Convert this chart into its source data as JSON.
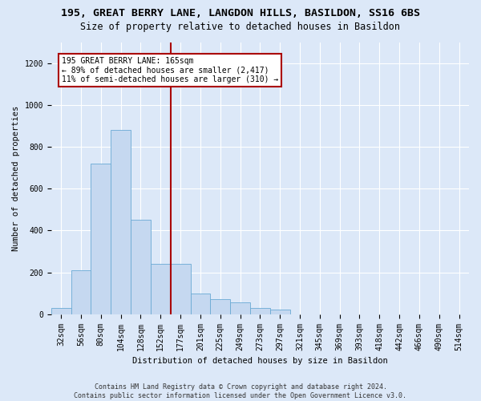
{
  "title": "195, GREAT BERRY LANE, LANGDON HILLS, BASILDON, SS16 6BS",
  "subtitle": "Size of property relative to detached houses in Basildon",
  "xlabel": "Distribution of detached houses by size in Basildon",
  "ylabel": "Number of detached properties",
  "footer": "Contains HM Land Registry data © Crown copyright and database right 2024.\nContains public sector information licensed under the Open Government Licence v3.0.",
  "bin_labels": [
    "32sqm",
    "56sqm",
    "80sqm",
    "104sqm",
    "128sqm",
    "152sqm",
    "177sqm",
    "201sqm",
    "225sqm",
    "249sqm",
    "273sqm",
    "297sqm",
    "321sqm",
    "345sqm",
    "369sqm",
    "393sqm",
    "418sqm",
    "442sqm",
    "466sqm",
    "490sqm",
    "514sqm"
  ],
  "bar_values": [
    30,
    210,
    720,
    880,
    450,
    240,
    240,
    100,
    70,
    55,
    30,
    20,
    0,
    0,
    0,
    0,
    0,
    0,
    0,
    0,
    0
  ],
  "bar_color": "#c5d8f0",
  "bar_edge_color": "#6aaad4",
  "vline_idx": 6,
  "vline_color": "#aa0000",
  "annotation_line1": "195 GREAT BERRY LANE: 165sqm",
  "annotation_line2": "← 89% of detached houses are smaller (2,417)",
  "annotation_line3": "11% of semi-detached houses are larger (310) →",
  "annotation_box_color": "#ffffff",
  "annotation_box_edge": "#aa0000",
  "ylim": [
    0,
    1300
  ],
  "yticks": [
    0,
    200,
    400,
    600,
    800,
    1000,
    1200
  ],
  "bg_color": "#dce8f8",
  "plot_bg_color": "#dce8f8",
  "title_fontsize": 9.5,
  "subtitle_fontsize": 8.5,
  "footer_fontsize": 6,
  "axis_label_fontsize": 7.5,
  "tick_fontsize": 7,
  "annotation_fontsize": 7
}
